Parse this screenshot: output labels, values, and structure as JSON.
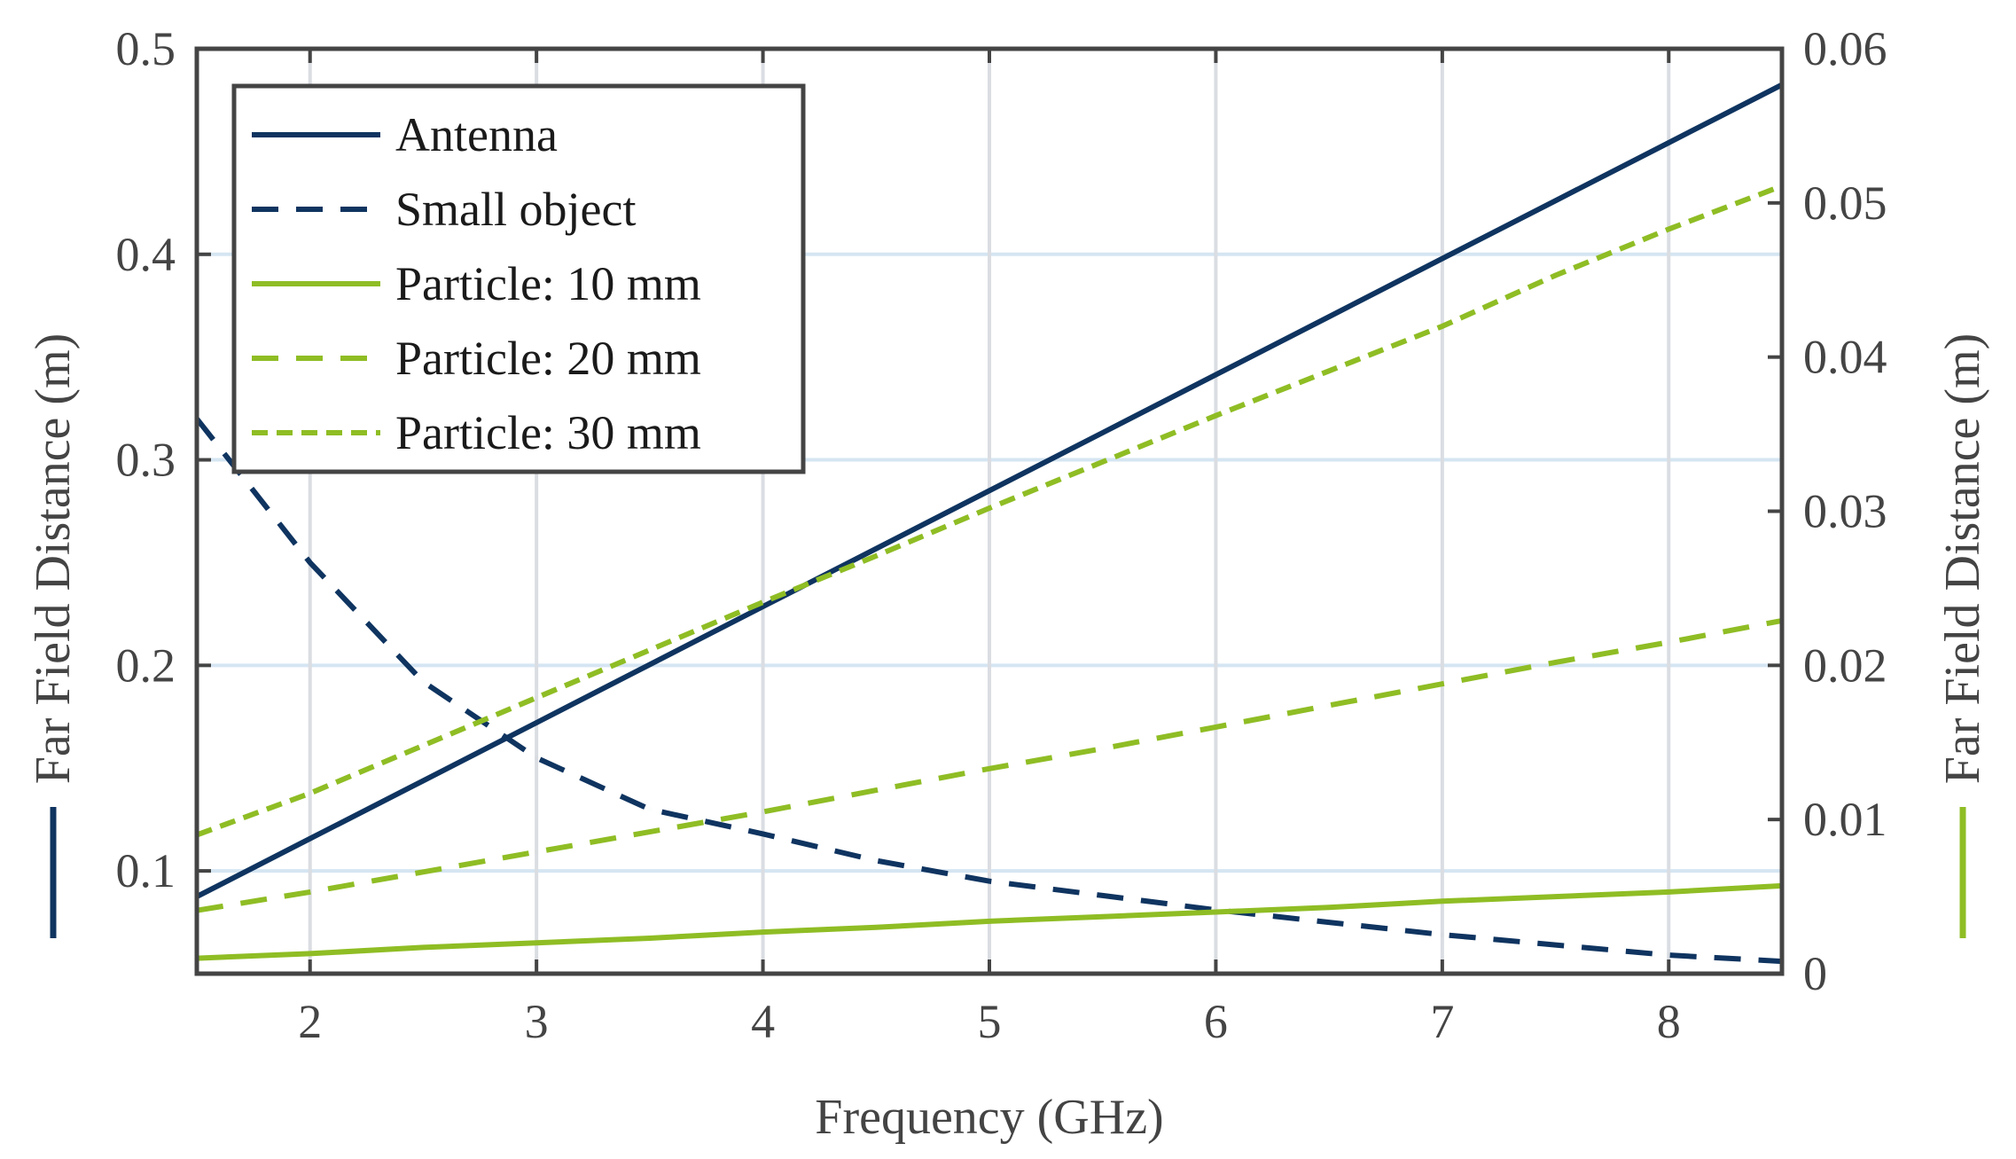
{
  "chart_data": {
    "type": "line",
    "xlabel": "Frequency (GHz)",
    "ylabel_left": "Far Field Distance (m)",
    "ylabel_right": "Far Field Distance (m)",
    "xlim": [
      1.5,
      8.5
    ],
    "ylim_left": [
      0.05,
      0.5
    ],
    "ylim_right": [
      0,
      0.06
    ],
    "x_ticks": [
      2,
      3,
      4,
      5,
      6,
      7,
      8
    ],
    "x_tick_labels": [
      "2",
      "3",
      "4",
      "5",
      "6",
      "7",
      "8"
    ],
    "y_left_ticks": [
      0.1,
      0.2,
      0.3,
      0.4,
      0.5
    ],
    "y_left_tick_labels": [
      "0.1",
      "0.2",
      "0.3",
      "0.4",
      "0.5"
    ],
    "y_right_ticks": [
      0,
      0.01,
      0.02,
      0.03,
      0.04,
      0.05,
      0.06
    ],
    "y_right_tick_labels": [
      "0",
      "0.01",
      "0.02",
      "0.03",
      "0.04",
      "0.05",
      "0.06"
    ],
    "legend_position": "top-left",
    "colors": {
      "navy": "#0f3460",
      "green": "#8fbd24",
      "grid_h": "#d5e5f2",
      "grid_v": "#dadde2",
      "frame": "#444444"
    },
    "x": [
      1.5,
      2,
      2.5,
      3,
      3.5,
      4,
      4.5,
      5,
      5.5,
      6,
      6.5,
      7,
      7.5,
      8,
      8.5
    ],
    "series": [
      {
        "name": "Antenna",
        "axis": "left",
        "style": "solid",
        "color": "#0f3460",
        "values": [
          0.0875,
          0.1157,
          0.1439,
          0.1721,
          0.2004,
          0.2286,
          0.2568,
          0.285,
          0.3132,
          0.3414,
          0.3696,
          0.3979,
          0.4261,
          0.4543,
          0.4825
        ]
      },
      {
        "name": "Small object",
        "axis": "left",
        "style": "dashed",
        "color": "#0f3460",
        "values": [
          0.32,
          0.25,
          0.192,
          0.155,
          0.13,
          0.118,
          0.105,
          0.095,
          0.088,
          0.081,
          0.075,
          0.069,
          0.064,
          0.059,
          0.056
        ]
      },
      {
        "name": "Particle: 10 mm",
        "axis": "right",
        "style": "solid",
        "color": "#8fbd24",
        "values": [
          0.001,
          0.0013,
          0.0017,
          0.002,
          0.0023,
          0.0027,
          0.003,
          0.0034,
          0.0037,
          0.004,
          0.0043,
          0.0047,
          0.005,
          0.0053,
          0.0057
        ]
      },
      {
        "name": "Particle: 20 mm",
        "axis": "right",
        "style": "dashed",
        "color": "#8fbd24",
        "values": [
          0.0041,
          0.0053,
          0.0066,
          0.0079,
          0.0092,
          0.0105,
          0.0119,
          0.0133,
          0.0146,
          0.016,
          0.0174,
          0.0188,
          0.0202,
          0.0215,
          0.0229
        ]
      },
      {
        "name": "Particle: 30 mm",
        "axis": "right",
        "style": "dotted",
        "color": "#8fbd24",
        "values": [
          0.009,
          0.0117,
          0.0148,
          0.0179,
          0.021,
          0.0241,
          0.0271,
          0.0302,
          0.0332,
          0.0362,
          0.0391,
          0.042,
          0.0453,
          0.0483,
          0.0511
        ]
      }
    ]
  }
}
